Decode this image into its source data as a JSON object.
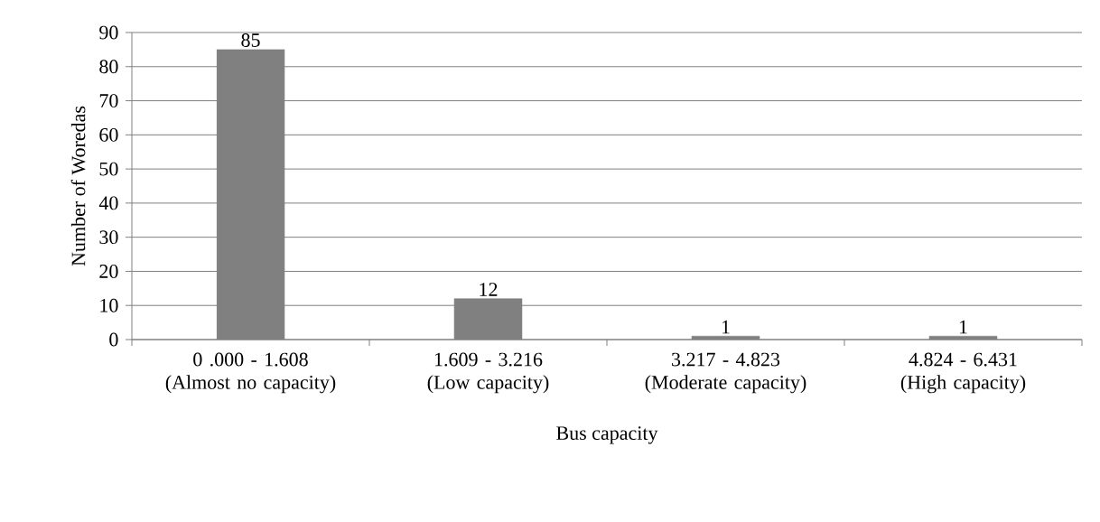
{
  "chart_data": {
    "type": "bar",
    "xlabel": "Bus capacity",
    "ylabel": "Number of Woredas",
    "categories": [
      "0 .000 - 1.608 (Almost no capacity)",
      "1.609 - 3.216 (Low capacity)",
      "3.217 - 4.823 (Moderate capacity)",
      "4.824 - 6.431 (High capacity)"
    ],
    "values": [
      85,
      12,
      1,
      1
    ],
    "color": "#808080",
    "data_labels": true,
    "grid": "y",
    "ylim": [
      0,
      90
    ],
    "yticks": [
      0,
      10,
      20,
      30,
      40,
      50,
      60,
      70,
      80,
      90
    ]
  }
}
